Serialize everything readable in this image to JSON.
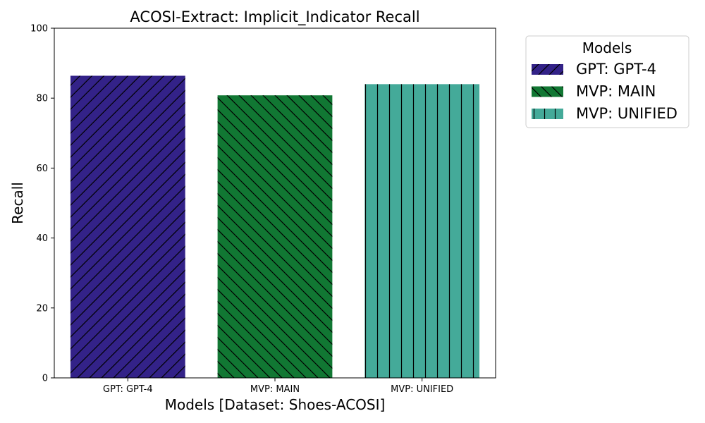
{
  "chart_data": {
    "type": "bar",
    "title": "ACOSI-Extract: Implicit_Indicator Recall",
    "xlabel": "Models [Dataset: Shoes-ACOSI]",
    "ylabel": "Recall",
    "ylim": [
      0,
      100
    ],
    "yticks": [
      0,
      20,
      40,
      60,
      80,
      100
    ],
    "categories": [
      "GPT: GPT-4",
      "MVP: MAIN",
      "MVP: UNIFIED"
    ],
    "values": [
      86.4,
      80.8,
      84.0
    ],
    "colors": [
      "#332288",
      "#117733",
      "#44AA99"
    ],
    "hatches": [
      "forward-diagonal",
      "back-diagonal",
      "vertical"
    ],
    "legend": {
      "title": "Models",
      "placement": "outside-upper-right",
      "entries": [
        "GPT: GPT-4",
        "MVP: MAIN",
        "MVP: UNIFIED"
      ]
    },
    "grid": false
  }
}
